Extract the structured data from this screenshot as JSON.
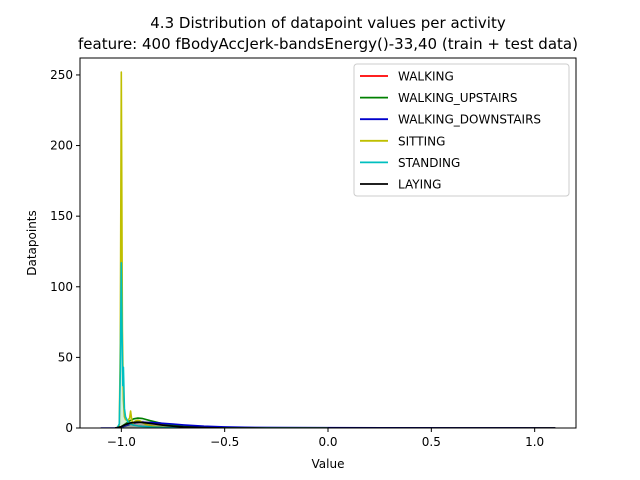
{
  "chart_data": {
    "type": "line",
    "title_line1": "4.3 Distribution of datapoint values per activity",
    "title_line2": "feature: 400 fBodyAccJerk-bandsEnergy()-33,40 (train + test data)",
    "xlabel": "Value",
    "ylabel": "Datapoints",
    "xlim": [
      -1.2,
      1.2
    ],
    "ylim": [
      0,
      262
    ],
    "xticks": [
      -1.0,
      -0.5,
      0.0,
      0.5,
      1.0
    ],
    "xtick_labels": [
      "−1.0",
      "−0.5",
      "0.0",
      "0.5",
      "1.0"
    ],
    "yticks": [
      0,
      50,
      100,
      150,
      200,
      250
    ],
    "ytick_labels": [
      "0",
      "50",
      "100",
      "150",
      "200",
      "250"
    ],
    "legend_position": "top-right",
    "series": [
      {
        "name": "WALKING",
        "color": "#ff0000",
        "x": [
          -1.02,
          -1.0,
          -0.98,
          -0.96,
          -0.94,
          -0.92,
          -0.9,
          -0.88,
          -0.86,
          -0.84,
          -0.82,
          -0.8,
          -0.75,
          -0.7,
          -0.6,
          -0.5,
          -0.3,
          0.0,
          0.5,
          1.1
        ],
        "y": [
          0,
          0.5,
          1.5,
          2.5,
          3.5,
          4,
          4.2,
          4,
          3.6,
          3.2,
          2.8,
          2.4,
          1.6,
          1,
          0.5,
          0.2,
          0.05,
          0,
          0,
          0
        ]
      },
      {
        "name": "WALKING_UPSTAIRS",
        "color": "#008000",
        "x": [
          -1.03,
          -1.0,
          -0.98,
          -0.96,
          -0.94,
          -0.92,
          -0.9,
          -0.88,
          -0.86,
          -0.84,
          -0.82,
          -0.8,
          -0.75,
          -0.7,
          -0.6,
          -0.5,
          -0.3,
          0.0,
          0.5,
          1.1
        ],
        "y": [
          0,
          1,
          3,
          5,
          6.5,
          7,
          6.8,
          6,
          5.2,
          4.5,
          3.8,
          3.2,
          2,
          1.2,
          0.5,
          0.2,
          0.05,
          0,
          0,
          0
        ]
      },
      {
        "name": "WALKING_DOWNSTAIRS",
        "color": "#0000cc",
        "x": [
          -1.1,
          -1.03,
          -1.0,
          -0.98,
          -0.96,
          -0.94,
          -0.92,
          -0.9,
          -0.88,
          -0.85,
          -0.8,
          -0.75,
          -0.7,
          -0.65,
          -0.6,
          -0.5,
          -0.4,
          -0.2,
          0.0,
          0.3,
          0.6,
          0.9,
          1.05,
          1.1
        ],
        "y": [
          0,
          0,
          0.5,
          1.5,
          2.5,
          3.5,
          4,
          4.2,
          4,
          3.8,
          3.3,
          2.8,
          2.2,
          1.7,
          1.3,
          0.8,
          0.5,
          0.3,
          0.2,
          0.12,
          0.08,
          0.05,
          0.02,
          0
        ]
      },
      {
        "name": "SITTING",
        "color": "#bfbf00",
        "x": [
          -1.02,
          -1.01,
          -1.005,
          -1.0,
          -0.995,
          -0.99,
          -0.985,
          -0.98,
          -0.97,
          -0.96,
          -0.955,
          -0.95,
          -0.945,
          -0.94,
          -0.93,
          -0.92,
          -0.91,
          -0.9,
          -0.88,
          -0.85,
          -0.8,
          -0.7,
          -0.5,
          0.0
        ],
        "y": [
          0,
          2,
          60,
          252,
          70,
          20,
          8,
          6,
          5,
          7,
          12,
          6,
          3,
          4,
          5,
          5.5,
          5,
          4,
          2.5,
          1.5,
          0.8,
          0.3,
          0.1,
          0
        ]
      },
      {
        "name": "STANDING",
        "color": "#00bfbf",
        "x": [
          -1.02,
          -1.01,
          -1.005,
          -1.0,
          -0.997,
          -0.993,
          -0.99,
          -0.985,
          -0.98,
          -0.97,
          -0.96,
          -0.95,
          -0.94,
          -0.93,
          -0.92,
          -0.9,
          -0.88,
          -0.85,
          -0.8,
          -0.7,
          -0.5,
          0.0
        ],
        "y": [
          0,
          3,
          40,
          117,
          70,
          30,
          43,
          14,
          8,
          5,
          3,
          2.5,
          2,
          1.8,
          1.5,
          1.2,
          1,
          0.7,
          0.4,
          0.2,
          0.05,
          0
        ]
      },
      {
        "name": "LAYING",
        "color": "#000000",
        "x": [
          -1.03,
          -1.0,
          -0.98,
          -0.96,
          -0.94,
          -0.92,
          -0.9,
          -0.88,
          -0.86,
          -0.84,
          -0.82,
          -0.8,
          -0.75,
          -0.7,
          -0.6,
          -0.5,
          -0.3,
          0.0,
          0.5,
          1.1
        ],
        "y": [
          0,
          1,
          2.5,
          3.5,
          4,
          4.2,
          4,
          3.6,
          3.2,
          2.8,
          2.4,
          2,
          1.3,
          0.8,
          0.3,
          0.1,
          0.02,
          0,
          0,
          0
        ]
      }
    ]
  }
}
